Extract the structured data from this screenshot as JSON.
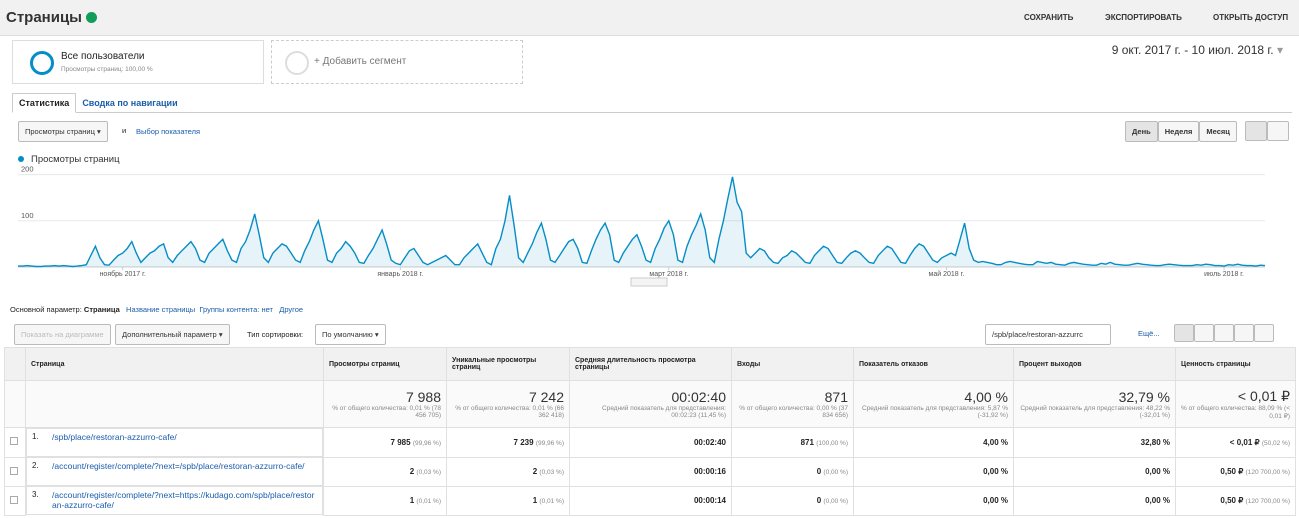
{
  "header": {
    "title": "Страницы",
    "actions": [
      "СОХРАНИТЬ",
      "ЭКСПОРТИРОВАТЬ",
      "ОТКРЫТЬ ДОСТУП"
    ]
  },
  "segments": {
    "current": "Все пользователи",
    "current_sub": "Просмотры страниц: 100,00 %",
    "add": "+ Добавить сегмент"
  },
  "date_range": "9 окт. 2017 г. - 10 июл. 2018 г.",
  "tabs": [
    "Статистика",
    "Сводка по навигации"
  ],
  "metric": {
    "selected": "Просмотры страниц",
    "and": "и",
    "choose": "Выбор показателя"
  },
  "periods": [
    "День",
    "Неделя",
    "Месяц"
  ],
  "chart_data": {
    "type": "line",
    "ylim": [
      0,
      210
    ],
    "yticks": [
      100,
      200
    ],
    "grid": true,
    "xticks": [
      {
        "value": 23,
        "label": "ноябрь 2017 г."
      },
      {
        "value": 84,
        "label": "январь 2018 г."
      },
      {
        "value": 143,
        "label": "март 2018 г."
      },
      {
        "value": 204,
        "label": "май 2018 г."
      },
      {
        "value": 265,
        "label": "июль 2018 г."
      }
    ],
    "series": [
      {
        "name": "Просмотры страниц",
        "color": "#058dc7",
        "values": [
          2,
          2,
          3,
          2,
          1,
          1,
          2,
          2,
          3,
          2,
          3,
          2,
          1,
          2,
          3,
          5,
          25,
          45,
          20,
          5,
          4,
          15,
          25,
          30,
          40,
          55,
          30,
          10,
          20,
          30,
          35,
          45,
          50,
          20,
          10,
          25,
          35,
          45,
          55,
          40,
          15,
          10,
          30,
          40,
          50,
          60,
          35,
          15,
          10,
          40,
          55,
          80,
          115,
          70,
          20,
          10,
          30,
          40,
          50,
          45,
          30,
          15,
          10,
          35,
          55,
          80,
          100,
          60,
          15,
          10,
          30,
          40,
          55,
          45,
          30,
          10,
          8,
          25,
          40,
          60,
          80,
          50,
          15,
          8,
          5,
          20,
          35,
          40,
          25,
          10,
          5,
          10,
          15,
          20,
          25,
          15,
          5,
          5,
          20,
          30,
          40,
          50,
          30,
          10,
          5,
          40,
          60,
          100,
          155,
          90,
          20,
          10,
          30,
          50,
          75,
          95,
          60,
          15,
          10,
          25,
          40,
          55,
          60,
          40,
          10,
          8,
          35,
          60,
          80,
          95,
          70,
          15,
          10,
          30,
          45,
          60,
          70,
          45,
          15,
          10,
          40,
          60,
          85,
          100,
          70,
          15,
          10,
          45,
          70,
          90,
          115,
          80,
          20,
          10,
          60,
          100,
          150,
          195,
          140,
          120,
          30,
          20,
          30,
          40,
          35,
          20,
          10,
          8,
          20,
          25,
          35,
          30,
          20,
          10,
          8,
          25,
          35,
          45,
          40,
          25,
          10,
          8,
          20,
          30,
          35,
          30,
          20,
          10,
          8,
          25,
          35,
          45,
          40,
          25,
          10,
          8,
          25,
          40,
          50,
          45,
          30,
          15,
          10,
          20,
          25,
          30,
          25,
          60,
          95,
          40,
          15,
          10,
          12,
          10,
          8,
          5,
          5,
          10,
          12,
          10,
          8,
          6,
          5,
          5,
          12,
          10,
          8,
          10,
          6,
          5,
          4,
          8,
          10,
          8,
          6,
          5,
          4,
          4,
          8,
          6,
          10,
          6,
          5,
          4,
          4,
          6,
          8,
          6,
          5,
          4,
          3,
          3,
          5,
          6,
          5,
          4,
          3,
          3,
          3,
          5,
          4,
          6,
          5,
          3,
          3,
          2,
          5,
          4,
          6,
          4,
          3,
          3,
          2,
          4,
          3
        ]
      }
    ]
  },
  "dimensions": {
    "label": "Основной параметр:",
    "items": [
      "Страница",
      "Название страницы",
      "Группы контента: нет",
      "Другое"
    ]
  },
  "toolbar": {
    "plot": "Показать на диаграмме",
    "secondary": "Дополнительный параметр",
    "sort_label": "Тип сортировки:",
    "sort": "По умолчанию",
    "search": "/spb/place/restoran-azzurrc",
    "more": "Ещё..."
  },
  "table": {
    "columns": [
      "Страница",
      "Просмотры страниц",
      "Уникальные просмотры страниц",
      "Средняя длительность просмотра страницы",
      "Входы",
      "Показатель отказов",
      "Процент выходов",
      "Ценность страницы"
    ],
    "totals": [
      [
        "7 988",
        "% от общего количества: 0,01 % (78 456 705)"
      ],
      [
        "7 242",
        "% от общего количества: 0,01 % (66 362 418)"
      ],
      [
        "00:02:40",
        "Средний показатель для представления: 00:02:23 (11,45 %)"
      ],
      [
        "871",
        "% от общего количества: 0,00 % (37 834 656)"
      ],
      [
        "4,00 %",
        "Средний показатель для представления: 5,87 % (-31,92 %)"
      ],
      [
        "32,79 %",
        "Средний показатель для представления: 48,22 % (-32,01 %)"
      ],
      [
        "< 0,01 ₽",
        "% от общего количества: 88,09 % (< 0,01 ₽)"
      ]
    ],
    "rows": [
      {
        "index": "1.",
        "page": "/spb/place/restoran-azzurro-cafe/",
        "cells": [
          [
            "7 985",
            "(99,96 %)"
          ],
          [
            "7 239",
            "(99,96 %)"
          ],
          [
            "00:02:40"
          ],
          [
            "871",
            "(100,00 %)"
          ],
          [
            "4,00 %"
          ],
          [
            "32,80 %"
          ],
          [
            "< 0,01 ₽",
            "(50,02 %)"
          ]
        ]
      },
      {
        "index": "2.",
        "page": "/account/register/complete/?next=/spb/place/restoran-azzurro-cafe/",
        "cells": [
          [
            "2",
            "(0,03 %)"
          ],
          [
            "2",
            "(0,03 %)"
          ],
          [
            "00:00:16"
          ],
          [
            "0",
            "(0,00 %)"
          ],
          [
            "0,00 %"
          ],
          [
            "0,00 %"
          ],
          [
            "0,50 ₽",
            "(120 700,00 %)"
          ]
        ]
      },
      {
        "index": "3.",
        "page": "/account/register/complete/?next=https://kudago.com/spb/place/restoran-azzurro-cafe/",
        "cells": [
          [
            "1",
            "(0,01 %)"
          ],
          [
            "1",
            "(0,01 %)"
          ],
          [
            "00:00:14"
          ],
          [
            "0",
            "(0,00 %)"
          ],
          [
            "0,00 %"
          ],
          [
            "0,00 %"
          ],
          [
            "0,50 ₽",
            "(120 700,00 %)"
          ]
        ]
      }
    ]
  }
}
